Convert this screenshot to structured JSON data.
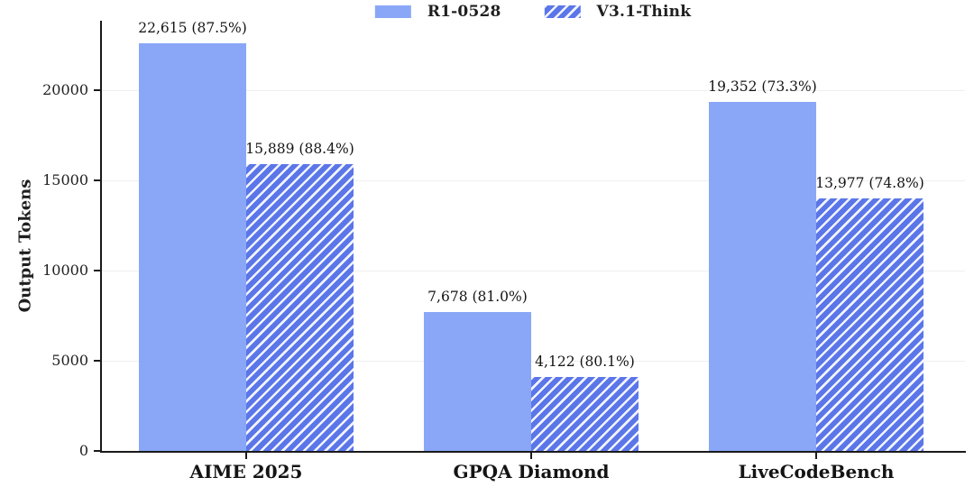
{
  "chart_data": {
    "type": "bar",
    "title": "",
    "xlabel": "",
    "ylabel": "Output Tokens",
    "categories": [
      "AIME 2025",
      "GPQA Diamond",
      "LiveCodeBench"
    ],
    "series": [
      {
        "name": "R1-0528",
        "values": [
          22615,
          7678,
          19352
        ],
        "labels": [
          "22,615 (87.5%)",
          "7,678 (81.0%)",
          "19,352 (73.3%)"
        ],
        "color": "#8aa7f7",
        "pattern": "solid"
      },
      {
        "name": "V3.1-Think",
        "values": [
          15889,
          4122,
          13977
        ],
        "labels": [
          "15,889 (88.4%)",
          "4,122 (80.1%)",
          "13,977 (74.8%)"
        ],
        "color": "#5b76e8",
        "pattern": "diagonal-stripes",
        "hatch_color": "#ffffff"
      }
    ],
    "yticks": [
      0,
      5000,
      10000,
      15000,
      20000
    ],
    "ytick_labels": [
      "0",
      "5000",
      "10000",
      "15000",
      "20000"
    ],
    "ylim": [
      0,
      23850
    ],
    "grid": "horizontal-light",
    "legend_position": "top-center",
    "colors": {
      "axis": "#1a1a1a",
      "grid": "#efefef",
      "text": "#1f1f1f"
    }
  }
}
